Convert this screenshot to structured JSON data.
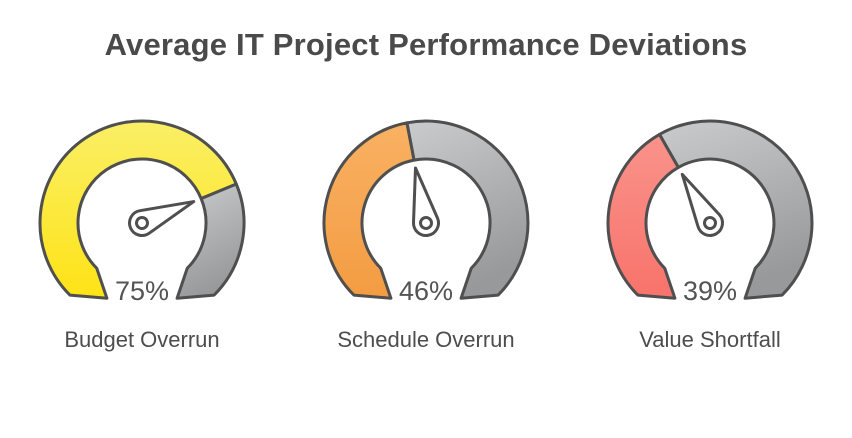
{
  "title": "Average IT Project Performance Deviations",
  "chart_data": {
    "type": "gauge",
    "title": "Average IT Project Performance Deviations",
    "range": [
      0,
      100
    ],
    "gauge_sweep_degrees": 270,
    "series": [
      {
        "name": "Budget Overrun",
        "value": 75,
        "unit": "%"
      },
      {
        "name": "Schedule Overrun",
        "value": 46,
        "unit": "%"
      },
      {
        "name": "Value Shortfall",
        "value": 39,
        "unit": "%"
      }
    ]
  },
  "gauges": [
    {
      "label": "Budget Overrun",
      "percent": 75,
      "percent_label": "75%",
      "fill_top": "#faef66",
      "fill_bottom": "#fee315"
    },
    {
      "label": "Schedule Overrun",
      "percent": 46,
      "percent_label": "46%",
      "fill_top": "#f9b163",
      "fill_bottom": "#f39c42"
    },
    {
      "label": "Value Shortfall",
      "percent": 39,
      "percent_label": "39%",
      "fill_top": "#f9938b",
      "fill_bottom": "#f8736b"
    }
  ],
  "colors": {
    "remainder_top": "#cacbcc",
    "remainder_bottom": "#97999b",
    "outline": "#4f4f4f",
    "needle_fill": "#ffffff",
    "title_text": "#4a4a4a",
    "percent_text": "#545454",
    "label_text": "#4d4d4d"
  }
}
